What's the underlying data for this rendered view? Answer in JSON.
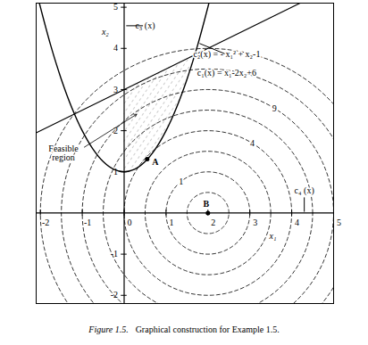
{
  "chart_data": {
    "type": "contour",
    "caption_label": "Figure 1.5.",
    "caption": "Graphical construction for Example 1.5.",
    "xlabel": "x₁",
    "ylabel": "x₂",
    "xlim": [
      -2.1,
      5
    ],
    "ylim": [
      -2.2,
      5.1
    ],
    "xticks": [
      -2,
      -1,
      0,
      1,
      2,
      3,
      4,
      5
    ],
    "yticks": [
      -2,
      -1,
      1,
      2,
      3,
      4,
      5
    ],
    "constraints": [
      {
        "name": "c₁(x) = x₁-2x₂+6",
        "x": [
          -2.1,
          4.2
        ],
        "y": [
          1.95,
          5.1
        ]
      },
      {
        "name": "c₂(x) = - x₁² + x₂-1",
        "x": [
          -2.05,
          -1.75,
          -1.5,
          -1.25,
          -1,
          -0.75,
          -0.5,
          -0.25,
          0,
          0.25,
          0.5,
          0.75,
          1,
          1.25,
          1.5,
          1.75,
          2.05
        ],
        "y": [
          5.2025,
          4.0625,
          3.25,
          2.5625,
          2,
          1.5625,
          1.25,
          1.0625,
          1,
          1.0625,
          1.25,
          1.5625,
          2,
          2.5625,
          3.25,
          4.0625,
          5.2025
        ]
      },
      {
        "name": "c₃ (x)",
        "x": [
          0,
          0
        ],
        "y": [
          -2.2,
          5.1
        ]
      },
      {
        "name": "c₄ (x)",
        "x": [
          -2.1,
          5
        ],
        "y": [
          0,
          0
        ]
      }
    ],
    "feasible_region": {
      "label": "Feasible\nregion",
      "x": [
        0,
        0.25,
        0.5,
        0.75,
        1,
        1.25,
        1.5,
        1.686
      ],
      "lower": [
        1,
        1.0625,
        1.25,
        1.5625,
        2,
        2.5625,
        3.25,
        3.843
      ],
      "upper": [
        3,
        3.125,
        3.25,
        3.375,
        3.5,
        3.625,
        3.75,
        3.843
      ]
    },
    "contours": {
      "center": [
        2,
        0
      ],
      "center_label": "B",
      "values": [
        0.25,
        1,
        2.25,
        4,
        6.25,
        9,
        12.25,
        16
      ],
      "labeled": [
        1,
        4,
        9
      ]
    },
    "point": {
      "label": "A",
      "x": 0.55,
      "y": 1.31
    }
  }
}
